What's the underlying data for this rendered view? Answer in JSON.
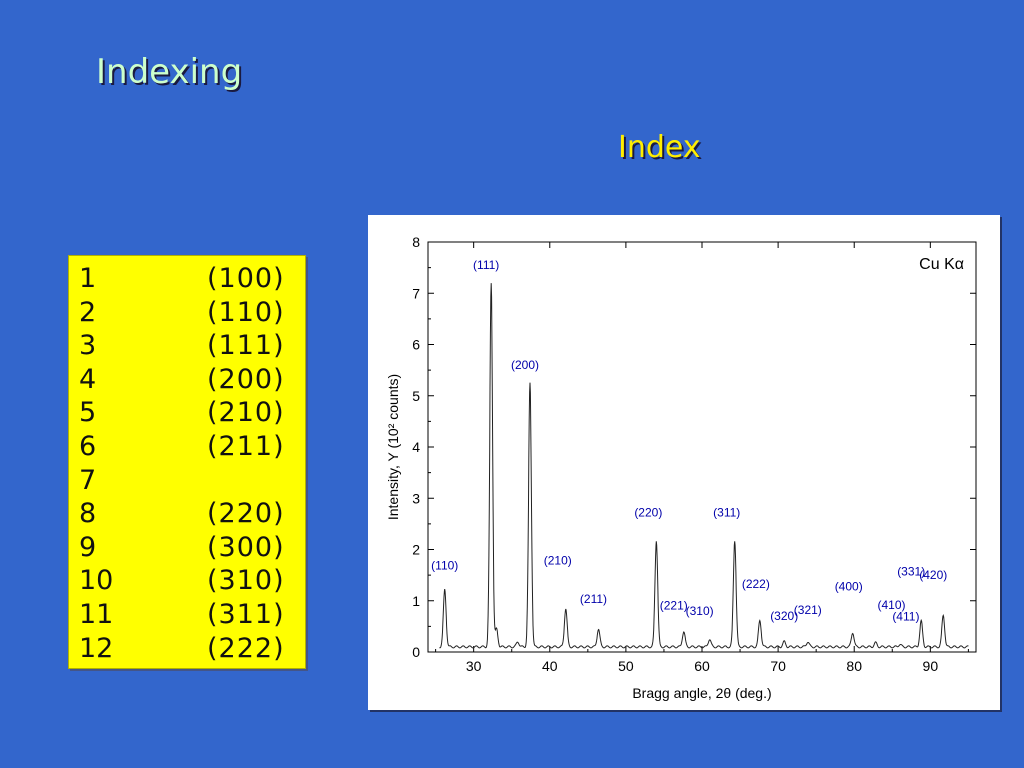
{
  "slide": {
    "title": "Indexing",
    "subtitle": "Index"
  },
  "index_table": {
    "rows": [
      {
        "n": "1",
        "hkl": "(100)"
      },
      {
        "n": "2",
        "hkl": "(110)"
      },
      {
        "n": "3",
        "hkl": "(111)"
      },
      {
        "n": "4",
        "hkl": "(200)"
      },
      {
        "n": "5",
        "hkl": "(210)"
      },
      {
        "n": "6",
        "hkl": "(211)"
      },
      {
        "n": "7",
        "hkl": ""
      },
      {
        "n": "8",
        "hkl": "(220)"
      },
      {
        "n": "9",
        "hkl": "(300)"
      },
      {
        "n": "10",
        "hkl": "(310)"
      },
      {
        "n": "11",
        "hkl": "(311)"
      },
      {
        "n": "12",
        "hkl": "(222)"
      }
    ]
  },
  "chart_data": {
    "type": "line",
    "title": "",
    "annotation": "Cu Kα",
    "xlabel": "Bragg angle, 2θ (deg.)",
    "ylabel": "Intensity, Y (10² counts)",
    "xlim": [
      24,
      96
    ],
    "ylim": [
      0,
      8
    ],
    "x_ticks": [
      30,
      40,
      50,
      60,
      70,
      80,
      90
    ],
    "y_ticks": [
      0,
      1,
      2,
      3,
      4,
      5,
      6,
      7,
      8
    ],
    "grid": false,
    "baseline": 0.1,
    "series": [
      {
        "peaks": [
          {
            "x": 26.2,
            "y": 1.22,
            "label": "(110)"
          },
          {
            "x": 32.3,
            "y": 7.2,
            "label": "(111)"
          },
          {
            "x": 33.0,
            "y": 0.45,
            "label": ""
          },
          {
            "x": 35.8,
            "y": 0.2,
            "label": ""
          },
          {
            "x": 37.4,
            "y": 5.25,
            "label": "(200)"
          },
          {
            "x": 42.1,
            "y": 0.85,
            "label": "(210)"
          },
          {
            "x": 46.4,
            "y": 0.45,
            "label": "(211)"
          },
          {
            "x": 54.0,
            "y": 2.18,
            "label": "(220)"
          },
          {
            "x": 57.6,
            "y": 0.4,
            "label": "(221)"
          },
          {
            "x": 61.0,
            "y": 0.25,
            "label": "(310)"
          },
          {
            "x": 64.3,
            "y": 2.18,
            "label": "(311)"
          },
          {
            "x": 67.6,
            "y": 0.62,
            "label": "(222)"
          },
          {
            "x": 70.8,
            "y": 0.2,
            "label": "(320)"
          },
          {
            "x": 73.9,
            "y": 0.2,
            "label": "(321)"
          },
          {
            "x": 79.8,
            "y": 0.38,
            "label": "(400)"
          },
          {
            "x": 82.8,
            "y": 0.18,
            "label": "(410)"
          },
          {
            "x": 86.0,
            "y": 0.15,
            "label": "(411)"
          },
          {
            "x": 88.8,
            "y": 0.6,
            "label": "(331)"
          },
          {
            "x": 91.7,
            "y": 0.72,
            "label": "(420)"
          }
        ]
      }
    ],
    "label_color": "#0000aa"
  }
}
